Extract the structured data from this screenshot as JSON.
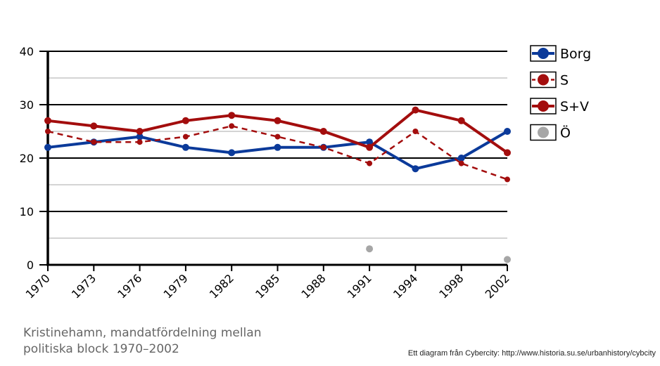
{
  "chart_data": {
    "type": "line",
    "title": "",
    "xlabel": "",
    "ylabel": "",
    "ylim": [
      0,
      40
    ],
    "yticks": [
      0,
      10,
      20,
      30,
      40
    ],
    "grid": true,
    "legend_position": "right",
    "categories": [
      "1970",
      "1973",
      "1976",
      "1979",
      "1982",
      "1985",
      "1988",
      "1991",
      "1994",
      "1998",
      "2002"
    ],
    "series": [
      {
        "name": "Borg",
        "color": "#0b3a9a",
        "style": "solid",
        "values": [
          22,
          23,
          24,
          22,
          21,
          22,
          22,
          23,
          18,
          20,
          25
        ]
      },
      {
        "name": "S",
        "color": "#a30d0d",
        "style": "dashed",
        "values": [
          25,
          23,
          23,
          24,
          26,
          24,
          22,
          19,
          25,
          19,
          16
        ]
      },
      {
        "name": "S+V",
        "color": "#a30d0d",
        "style": "solid",
        "values": [
          27,
          26,
          25,
          27,
          28,
          27,
          25,
          22,
          29,
          27,
          21
        ]
      },
      {
        "name": "Ö",
        "color": "#a6a6a6",
        "style": "points",
        "values": [
          null,
          null,
          null,
          null,
          null,
          null,
          null,
          3,
          null,
          null,
          1
        ]
      }
    ]
  },
  "caption": {
    "line1": "Kristinehamn, mandatfördelning mellan",
    "line2": "politiska block 1970–2002"
  },
  "credit": "Ett diagram från Cybercity: http://www.historia.su.se/urbanhistory/cybcity"
}
